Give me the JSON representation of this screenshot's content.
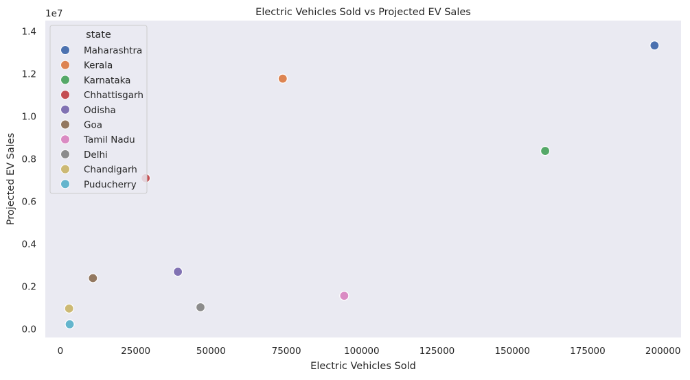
{
  "chart_data": {
    "type": "scatter",
    "title": "Electric Vehicles Sold vs Projected EV Sales",
    "xlabel": "Electric Vehicles Sold",
    "ylabel": "Projected EV Sales",
    "y_offset_label": "1e7",
    "xlim": [
      -5000,
      206000
    ],
    "ylim": [
      -400000,
      14500000
    ],
    "x_ticks": [
      0,
      25000,
      50000,
      75000,
      100000,
      125000,
      150000,
      175000,
      200000
    ],
    "x_tick_labels": [
      "0",
      "25000",
      "50000",
      "75000",
      "100000",
      "125000",
      "150000",
      "175000",
      "200000"
    ],
    "y_ticks": [
      0,
      2000000,
      4000000,
      6000000,
      8000000,
      10000000,
      12000000,
      14000000
    ],
    "y_tick_labels": [
      "0.0",
      "0.2",
      "0.4",
      "0.6",
      "0.8",
      "1.0",
      "1.2",
      "1.4"
    ],
    "grid": false,
    "background": "#eaeaf2",
    "legend": {
      "title": "state",
      "placement": "top-left"
    },
    "series": [
      {
        "name": "Maharashtra",
        "color": "#4c72b0",
        "x": [
          197200
        ],
        "y": [
          13330000
        ]
      },
      {
        "name": "Kerala",
        "color": "#dd8452",
        "x": [
          73800
        ],
        "y": [
          11770000
        ]
      },
      {
        "name": "Karnataka",
        "color": "#55a868",
        "x": [
          160900
        ],
        "y": [
          8370000
        ]
      },
      {
        "name": "Chhattisgarh",
        "color": "#c44e52",
        "x": [
          28300
        ],
        "y": [
          7090000
        ]
      },
      {
        "name": "Odisha",
        "color": "#8172b3",
        "x": [
          39000
        ],
        "y": [
          2690000
        ]
      },
      {
        "name": "Goa",
        "color": "#937860",
        "x": [
          10800
        ],
        "y": [
          2390000
        ]
      },
      {
        "name": "Tamil Nadu",
        "color": "#da8bc3",
        "x": [
          94200
        ],
        "y": [
          1560000
        ]
      },
      {
        "name": "Delhi",
        "color": "#8c8c8c",
        "x": [
          46500
        ],
        "y": [
          1020000
        ]
      },
      {
        "name": "Chandigarh",
        "color": "#ccb974",
        "x": [
          2900
        ],
        "y": [
          960000
        ]
      },
      {
        "name": "Puducherry",
        "color": "#64b5cd",
        "x": [
          3100
        ],
        "y": [
          220000
        ]
      }
    ]
  }
}
